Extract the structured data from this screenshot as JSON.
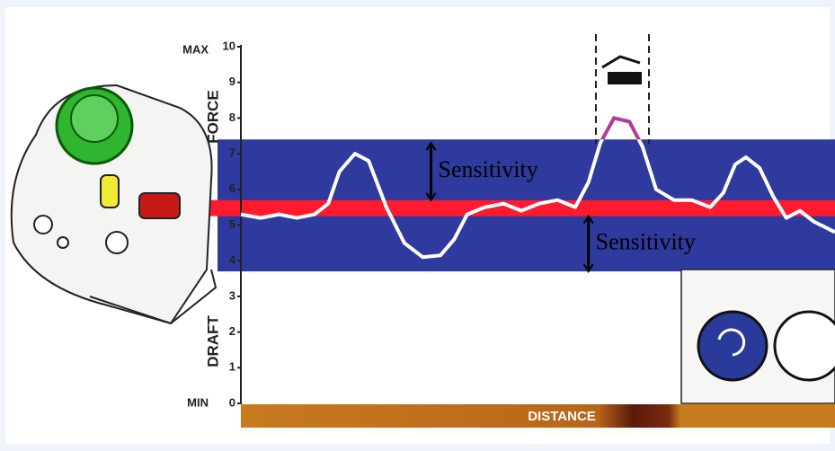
{
  "chart_data": {
    "type": "line",
    "y_label_parts": [
      "DRAFT",
      "FORCE"
    ],
    "max_label": "MAX",
    "min_label": "MIN",
    "x_label": "DISTANCE",
    "ylim": [
      0,
      10
    ],
    "yticks": [
      0,
      1,
      2,
      3,
      4,
      5,
      6,
      7,
      8,
      9,
      10
    ],
    "xlim": [
      0,
      100
    ],
    "grid": false,
    "x": [
      0,
      3.3,
      6.4,
      9.4,
      12.4,
      14.7,
      16.6,
      19.2,
      21.5,
      24.5,
      27.5,
      30.6,
      33.6,
      35.9,
      38.1,
      41.1,
      44.2,
      47.2,
      50.2,
      53.3,
      56.3,
      58.5,
      60.5,
      62.8,
      65.4,
      67.6,
      69.9,
      72.9,
      75.9,
      79.0,
      81.2,
      83.2,
      85.0,
      87.3,
      89.6,
      91.8,
      94.1,
      96.4,
      100
    ],
    "series": [
      {
        "color": "#ffffff",
        "highlight_color": "#b03aa0",
        "values": [
          5.3,
          5.2,
          5.3,
          5.2,
          5.3,
          5.6,
          6.5,
          7.0,
          6.8,
          5.5,
          4.5,
          4.1,
          4.15,
          4.6,
          5.3,
          5.5,
          5.6,
          5.4,
          5.6,
          5.7,
          5.5,
          6.2,
          7.3,
          8.0,
          7.9,
          7.2,
          6.0,
          5.7,
          5.7,
          5.5,
          5.9,
          6.7,
          6.9,
          6.6,
          5.8,
          5.2,
          5.4,
          5.1,
          4.8
        ]
      }
    ],
    "sensitivity_band": {
      "range": [
        3.7,
        7.4
      ],
      "color": "#2e3a9e"
    },
    "setpoint_band": {
      "range": [
        5.25,
        5.7
      ],
      "color": "#ff1a2e"
    },
    "annotations": [
      {
        "text": "Sensitivity",
        "x": 32,
        "from": 7.3,
        "to": 5.7
      },
      {
        "text": "Sensitivity",
        "x": 58.5,
        "from": 5.25,
        "to": 3.7
      }
    ]
  }
}
